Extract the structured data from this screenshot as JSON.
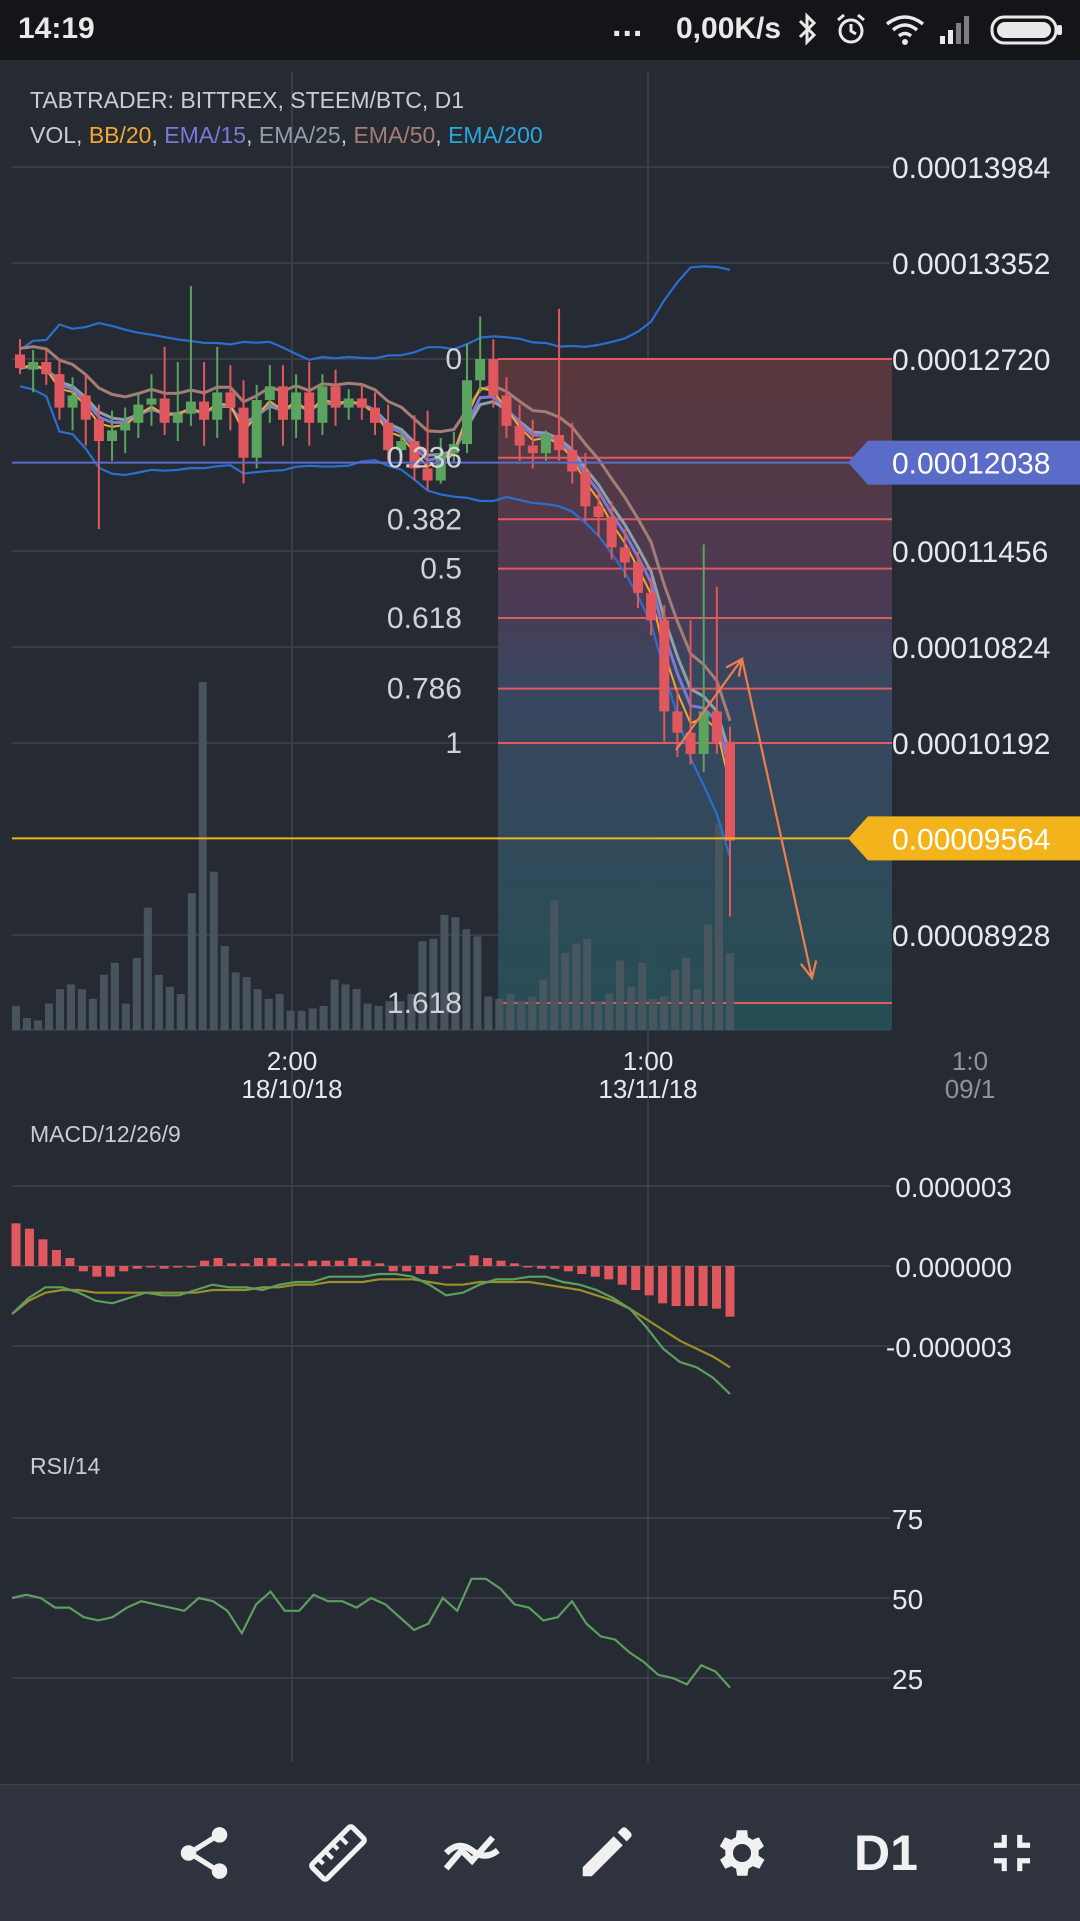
{
  "statusbar": {
    "time": "14:19",
    "dots": "...",
    "net_speed": "0,00K/s",
    "icons": [
      "bluetooth-icon",
      "alarm-icon",
      "wifi-icon",
      "signal-icon",
      "battery-icon"
    ]
  },
  "chart_header": {
    "title": "TABTRADER: BITTREX, STEEM/BTC, D1",
    "indicators": [
      {
        "label": "VOL",
        "color": "#c9ccd2"
      },
      {
        "label": "BB/20",
        "color": "#f2a72f"
      },
      {
        "label": "EMA/15",
        "color": "#7b78d8"
      },
      {
        "label": "EMA/25",
        "color": "#8ea0a8"
      },
      {
        "label": "EMA/50",
        "color": "#a57d77"
      },
      {
        "label": "EMA/200",
        "color": "#2aa6e0"
      }
    ]
  },
  "chart_data": [
    {
      "type": "candlestick",
      "title": "TABTRADER: BITTREX, STEEM/BTC, D1",
      "price_axis": [
        "0.00013984",
        "0.00013352",
        "0.00012720",
        "0.00012038",
        "0.00011456",
        "0.00010824",
        "0.00010192",
        "0.00009564",
        "0.00008928"
      ],
      "price_markers": [
        {
          "value": "0.00012038",
          "color": "#5b6bc8"
        },
        {
          "value": "0.00009564",
          "color": "#f2b31b"
        }
      ],
      "time_axis": [
        {
          "time": "2:00",
          "date": "18/10/18"
        },
        {
          "time": "1:00",
          "date": "13/11/18"
        },
        {
          "time": "1:0",
          "date": "09/1"
        }
      ],
      "fibonacci": {
        "levels": [
          "0",
          "0.236",
          "0.382",
          "0.5",
          "0.618",
          "0.786",
          "1",
          "1.618"
        ],
        "level_prices": [
          0.0001272,
          0.0001207,
          0.00011665,
          0.0001134,
          0.00011015,
          0.0001055,
          0.00010192,
          8.48e-05
        ]
      },
      "candles": [
        [
          0.0001275,
          0.0001285,
          0.0001266,
          0.0001262
        ],
        [
          0.0001265,
          0.0001278,
          0.000127,
          0.000125
        ],
        [
          0.000127,
          0.0001278,
          0.0001262,
          0.0001255
        ],
        [
          0.0001262,
          0.0001272,
          0.000124,
          0.0001232
        ],
        [
          0.000124,
          0.000126,
          0.0001248,
          0.0001225
        ],
        [
          0.0001248,
          0.0001262,
          0.0001232,
          0.0001215
        ],
        [
          0.0001232,
          0.0001242,
          0.0001218,
          0.000116
        ],
        [
          0.0001218,
          0.0001238,
          0.0001225,
          0.0001205
        ],
        [
          0.0001225,
          0.000124,
          0.000123,
          0.000121
        ],
        [
          0.000123,
          0.000125,
          0.0001242,
          0.000122
        ],
        [
          0.0001242,
          0.0001262,
          0.0001246,
          0.0001228
        ],
        [
          0.0001246,
          0.000128,
          0.000123,
          0.0001222
        ],
        [
          0.000123,
          0.000127,
          0.0001236,
          0.0001218
        ],
        [
          0.0001236,
          0.000132,
          0.0001244,
          0.0001228
        ],
        [
          0.0001244,
          0.000127,
          0.0001232,
          0.0001215
        ],
        [
          0.0001232,
          0.000128,
          0.000125,
          0.000122
        ],
        [
          0.000125,
          0.0001268,
          0.000124,
          0.0001225
        ],
        [
          0.000124,
          0.0001258,
          0.0001207,
          0.000119
        ],
        [
          0.0001207,
          0.0001255,
          0.0001245,
          0.00012
        ],
        [
          0.0001245,
          0.0001268,
          0.0001254,
          0.000123
        ],
        [
          0.0001254,
          0.0001268,
          0.0001232,
          0.0001215
        ],
        [
          0.0001232,
          0.0001262,
          0.000125,
          0.000122
        ],
        [
          0.000125,
          0.000127,
          0.000123,
          0.0001215
        ],
        [
          0.000123,
          0.0001262,
          0.0001254,
          0.0001222
        ],
        [
          0.0001254,
          0.0001265,
          0.000124,
          0.0001228
        ],
        [
          0.000124,
          0.0001252,
          0.0001246,
          0.0001232
        ],
        [
          0.0001246,
          0.0001255,
          0.000124,
          0.0001232
        ],
        [
          0.000124,
          0.000125,
          0.000123,
          0.0001222
        ],
        [
          0.000123,
          0.0001242,
          0.0001212,
          0.0001205
        ],
        [
          0.0001212,
          0.0001225,
          0.0001218,
          0.0001205
        ],
        [
          0.0001218,
          0.0001235,
          0.00012,
          0.0001192
        ],
        [
          0.00012,
          0.0001238,
          0.0001192,
          0.0001186
        ],
        [
          0.0001192,
          0.000122,
          0.000121,
          0.000119
        ],
        [
          0.000121,
          0.0001224,
          0.0001216,
          0.0001204
        ],
        [
          0.0001216,
          0.0001282,
          0.0001258,
          0.000121
        ],
        [
          0.0001258,
          0.00013,
          0.0001272,
          0.000125
        ],
        [
          0.0001272,
          0.0001285,
          0.0001248,
          0.000124
        ],
        [
          0.0001248,
          0.000126,
          0.0001228,
          0.000122
        ],
        [
          0.0001228,
          0.0001242,
          0.0001215,
          0.0001205
        ],
        [
          0.0001215,
          0.0001232,
          0.000121,
          0.00012
        ],
        [
          0.000121,
          0.0001225,
          0.0001222,
          0.0001205
        ],
        [
          0.0001222,
          0.0001305,
          0.0001212,
          0.0001205
        ],
        [
          0.0001212,
          0.000123,
          0.0001198,
          0.000119
        ],
        [
          0.0001198,
          0.000121,
          0.0001175,
          0.0001165
        ],
        [
          0.0001175,
          0.0001185,
          0.0001168,
          0.0001155
        ],
        [
          0.0001168,
          0.0001178,
          0.0001148,
          0.000114
        ],
        [
          0.0001148,
          0.000116,
          0.0001138,
          0.0001128
        ],
        [
          0.0001138,
          0.0001145,
          0.0001118,
          0.0001108
        ],
        [
          0.0001118,
          0.0001128,
          0.00011,
          0.000109
        ],
        [
          0.00011,
          0.000111,
          0.000104,
          0.000102
        ],
        [
          0.000104,
          0.0001055,
          0.0001026,
          0.000101
        ],
        [
          0.0001026,
          0.00011,
          0.0001012,
          0.0001005
        ],
        [
          0.0001012,
          0.000115,
          0.000104,
          0.0001
        ],
        [
          0.000104,
          0.0001122,
          0.000102,
          0.0001012
        ],
        [
          0.000102,
          0.000103,
          9.55e-05,
          9.05e-05
        ]
      ],
      "volume": [
        10,
        5,
        4,
        11,
        17,
        19,
        17,
        13,
        23,
        28,
        11,
        30,
        51,
        23,
        18,
        15,
        57,
        145,
        66,
        35,
        24,
        22,
        17,
        13,
        15,
        8,
        8,
        9,
        10,
        21,
        19,
        17,
        11,
        10,
        12,
        12,
        15,
        37,
        38,
        48,
        47,
        42,
        39,
        14,
        13,
        15,
        12,
        14,
        21,
        54,
        32,
        36,
        38,
        12,
        15,
        29,
        18,
        28,
        13,
        14,
        25,
        30,
        17,
        44,
        86,
        32
      ],
      "ema_labels": [
        "BB/20",
        "EMA/15",
        "EMA/25",
        "EMA/50",
        "EMA/200"
      ]
    },
    {
      "type": "line",
      "title": "MACD/12/26/9",
      "y_ticks": [
        "0.000003",
        "0.000000",
        "-0.000003"
      ],
      "histogram": [
        1.6,
        1.4,
        1.0,
        0.6,
        0.3,
        -0.2,
        -0.4,
        -0.4,
        -0.2,
        -0.1,
        0,
        -0.1,
        0,
        0,
        0.2,
        0.3,
        0.1,
        0.1,
        0.3,
        0.3,
        0.1,
        0.1,
        0.2,
        0.2,
        0.2,
        0.3,
        0.2,
        0.1,
        -0.2,
        -0.2,
        -0.3,
        -0.3,
        -0.1,
        0.1,
        0.4,
        0.3,
        0.2,
        0.1,
        0,
        -0.1,
        -0.1,
        -0.2,
        -0.3,
        -0.4,
        -0.5,
        -0.7,
        -0.9,
        -1.1,
        -1.4,
        -1.5,
        -1.5,
        -1.5,
        -1.6,
        -1.9
      ],
      "macd_line": [
        -1.8,
        -1.2,
        -0.8,
        -0.8,
        -1.0,
        -1.3,
        -1.4,
        -1.2,
        -1.0,
        -1.1,
        -1.1,
        -0.9,
        -0.7,
        -0.8,
        -0.8,
        -0.9,
        -0.7,
        -0.6,
        -0.6,
        -0.4,
        -0.4,
        -0.4,
        -0.3,
        -0.3,
        -0.4,
        -0.7,
        -1.1,
        -1.0,
        -0.7,
        -0.5,
        -0.5,
        -0.4,
        -0.4,
        -0.6,
        -0.7,
        -0.9,
        -1.2,
        -1.6,
        -2.3,
        -3.1,
        -3.6,
        -3.8,
        -4.2,
        -4.8
      ],
      "signal_line": [
        -1.8,
        -1.3,
        -1.0,
        -0.9,
        -0.9,
        -1.0,
        -1.0,
        -1.0,
        -1.0,
        -1.0,
        -1.0,
        -1.0,
        -0.9,
        -0.9,
        -0.9,
        -0.8,
        -0.8,
        -0.7,
        -0.7,
        -0.6,
        -0.6,
        -0.6,
        -0.5,
        -0.5,
        -0.5,
        -0.6,
        -0.7,
        -0.7,
        -0.6,
        -0.6,
        -0.6,
        -0.6,
        -0.7,
        -0.8,
        -0.9,
        -1.1,
        -1.3,
        -1.6,
        -2.0,
        -2.4,
        -2.8,
        -3.1,
        -3.4,
        -3.8
      ]
    },
    {
      "type": "line",
      "title": "RSI/14",
      "y_ticks": [
        "75",
        "50",
        "25"
      ],
      "values": [
        50,
        51,
        50,
        47,
        47,
        44,
        43,
        44,
        47,
        49,
        48,
        47,
        46,
        50,
        49,
        46,
        39,
        48,
        52,
        46,
        46,
        51,
        49,
        49,
        47,
        50,
        48,
        44,
        40,
        42,
        50,
        46,
        56,
        56,
        53,
        48,
        47,
        43,
        44,
        49,
        42,
        38,
        37,
        33,
        30,
        26,
        25,
        23,
        29,
        27,
        22
      ]
    }
  ],
  "toolbar": {
    "buttons": [
      {
        "name": "share-button",
        "icon": "share-icon"
      },
      {
        "name": "ruler-button",
        "icon": "ruler-icon"
      },
      {
        "name": "indicators-button",
        "icon": "indicator-icon"
      },
      {
        "name": "draw-button",
        "icon": "pencil-icon"
      },
      {
        "name": "settings-button",
        "icon": "gear-icon"
      },
      {
        "name": "timeframe-button",
        "label": "D1"
      },
      {
        "name": "fullscreen-exit-button",
        "icon": "fullscreen-exit-icon"
      }
    ],
    "timeframe_label": "D1"
  }
}
